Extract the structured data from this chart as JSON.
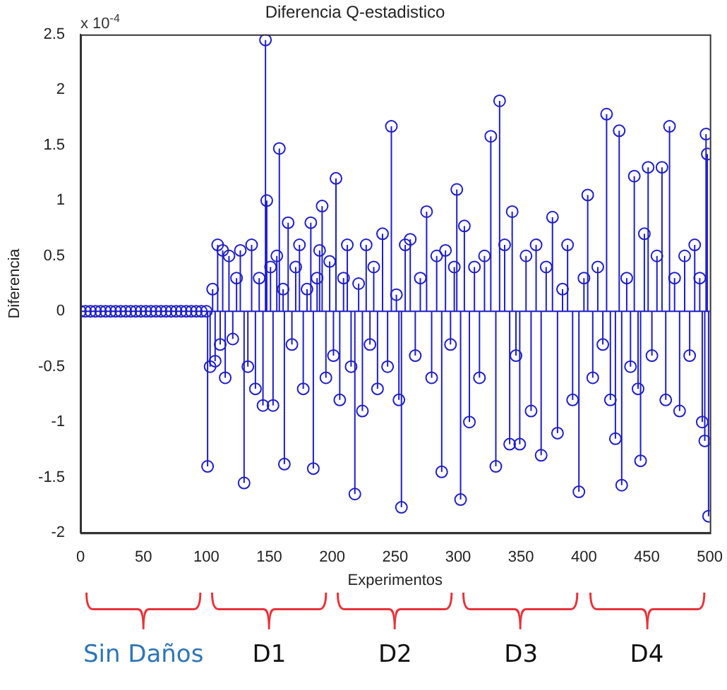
{
  "chart_data": {
    "type": "lollipop",
    "title": "Diferencia Q-estadistico",
    "xlabel": "Experimentos",
    "ylabel": "Diferencia",
    "annotations": [
      "x 10$^{-4}$",
      "Sin Daños",
      "D1",
      "D2",
      "D3",
      "D4"
    ],
    "xlim": [
      0,
      500
    ],
    "xticks": [
      0,
      50,
      100,
      150,
      200,
      250,
      300,
      350,
      400,
      450,
      500
    ],
    "ylim": [
      -2,
      2.5
    ],
    "yticks": [
      -2,
      -1.5,
      -1,
      -0.5,
      0,
      0.5,
      1,
      1.5,
      2,
      2.5
    ],
    "grid": false,
    "ref_lines": [
      {
        "axis": "y",
        "value": 0,
        "color": "#1f1fc8"
      }
    ],
    "marker": "circle",
    "legend": false,
    "series": [
      {
        "color": "#1f1fc8",
        "x": [
          0,
          4,
          8,
          12,
          16,
          20,
          24,
          28,
          32,
          36,
          40,
          44,
          48,
          52,
          56,
          60,
          64,
          68,
          72,
          76,
          80,
          84,
          88,
          92,
          96,
          100,
          101,
          103,
          105,
          107,
          109,
          111,
          113,
          115,
          118,
          121,
          124,
          127,
          130,
          133,
          136,
          139,
          142,
          145,
          147,
          148,
          151,
          153,
          156,
          158,
          161,
          162,
          165,
          168,
          171,
          174,
          177,
          180,
          183,
          185,
          188,
          190,
          192,
          195,
          198,
          201,
          203,
          206,
          209,
          212,
          215,
          218,
          221,
          224,
          227,
          230,
          233,
          236,
          240,
          244,
          247,
          251,
          253,
          255,
          258,
          262,
          266,
          270,
          275,
          279,
          283,
          287,
          290,
          294,
          297,
          299,
          302,
          305,
          309,
          313,
          317,
          321,
          326,
          330,
          333,
          337,
          341,
          343,
          346,
          349,
          354,
          358,
          362,
          366,
          370,
          375,
          379,
          383,
          387,
          391,
          396,
          400,
          403,
          407,
          411,
          415,
          418,
          421,
          425,
          428,
          430,
          434,
          437,
          440,
          443,
          445,
          448,
          451,
          454,
          458,
          462,
          465,
          468,
          472,
          476,
          480,
          484,
          488,
          492,
          494,
          496,
          497,
          498,
          499
        ],
        "values": [
          0,
          0,
          0,
          0,
          0,
          0,
          0,
          0,
          0,
          0,
          0,
          0,
          0,
          0,
          0,
          0,
          0,
          0,
          0,
          0,
          0,
          0,
          0,
          0,
          0,
          0,
          -1.4,
          -0.5,
          0.2,
          -0.45,
          0.6,
          -0.3,
          0.55,
          -0.6,
          0.5,
          -0.25,
          0.3,
          0.55,
          -1.55,
          -0.5,
          0.6,
          -0.7,
          0.3,
          -0.85,
          2.45,
          1.0,
          0.4,
          -0.85,
          0.5,
          1.47,
          0.2,
          -1.38,
          0.8,
          -0.3,
          0.4,
          0.6,
          -0.7,
          0.2,
          0.8,
          -1.42,
          0.3,
          0.55,
          0.95,
          -0.6,
          0.45,
          -0.4,
          1.2,
          -0.8,
          0.3,
          0.6,
          -0.5,
          -1.65,
          0.25,
          -0.9,
          0.6,
          -0.3,
          0.4,
          -0.7,
          0.7,
          -0.5,
          1.67,
          0.15,
          -0.8,
          -1.77,
          0.6,
          0.65,
          -0.4,
          0.3,
          0.9,
          -0.6,
          0.5,
          -1.45,
          0.55,
          -0.3,
          0.4,
          1.1,
          -1.7,
          0.77,
          -1.0,
          0.4,
          -0.6,
          0.5,
          1.58,
          -1.4,
          1.9,
          0.6,
          -1.2,
          0.9,
          -0.4,
          -1.2,
          0.5,
          -0.9,
          0.6,
          -1.3,
          0.4,
          0.85,
          -1.1,
          0.2,
          0.6,
          -0.8,
          -1.63,
          0.3,
          1.05,
          -0.6,
          0.4,
          -0.3,
          1.78,
          -0.8,
          -1.15,
          1.63,
          -1.57,
          0.3,
          -0.5,
          1.22,
          -0.7,
          -1.35,
          0.7,
          1.3,
          -0.4,
          0.5,
          1.3,
          -0.8,
          1.67,
          0.3,
          -0.9,
          0.5,
          -0.4,
          0.6,
          0.3,
          -1.0,
          -1.17,
          1.6,
          1.42,
          -1.85
        ]
      }
    ]
  }
}
